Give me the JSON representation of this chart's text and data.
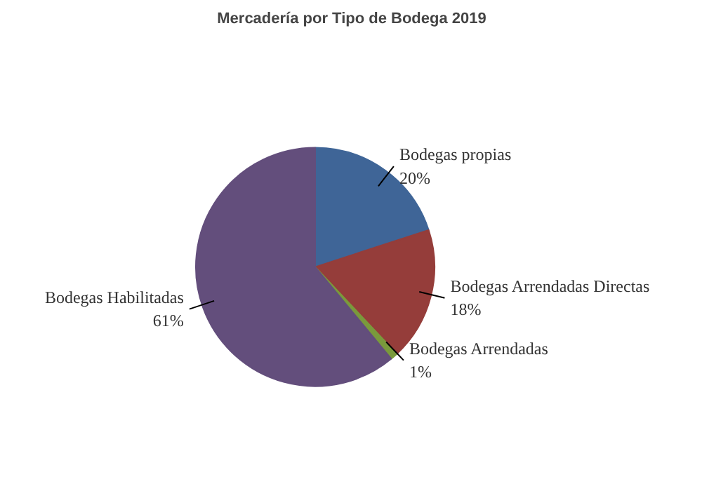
{
  "chart_data": {
    "type": "pie",
    "title": "Mercadería por Tipo de Bodega 2019",
    "categories": [
      "Bodegas propias",
      "Bodegas Arrendadas Directas",
      "Bodegas Arrendadas",
      "Bodegas Habilitadas"
    ],
    "values": [
      20,
      18,
      1,
      61
    ],
    "value_labels": [
      "20%",
      "18%",
      "1%",
      "61%"
    ],
    "colors": [
      "#3f6597",
      "#953d3a",
      "#7a9a3c",
      "#634e7c"
    ]
  }
}
